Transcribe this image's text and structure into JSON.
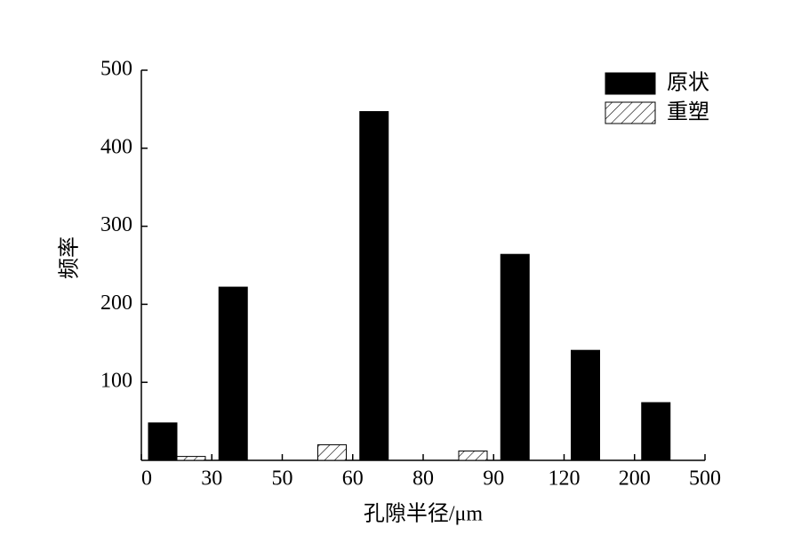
{
  "chart_data": {
    "type": "bar",
    "x_label": "孔隙半径/μm",
    "y_label": "频率",
    "x_edge_labels": [
      "0",
      "30",
      "50",
      "60",
      "80",
      "90",
      "120",
      "200",
      "500"
    ],
    "series": [
      {
        "name": "原状",
        "color": "#000000",
        "pattern": "solid",
        "values": [
          48,
          222,
          0,
          447,
          0,
          264,
          141,
          74
        ]
      },
      {
        "name": "重塑",
        "color": "#000000",
        "pattern": "hatch",
        "values": [
          5,
          0,
          20,
          0,
          12,
          0,
          0,
          0
        ]
      }
    ],
    "ylim": [
      0,
      500
    ],
    "yticks": [
      100,
      200,
      300,
      400,
      500
    ],
    "legend": "upper right"
  }
}
